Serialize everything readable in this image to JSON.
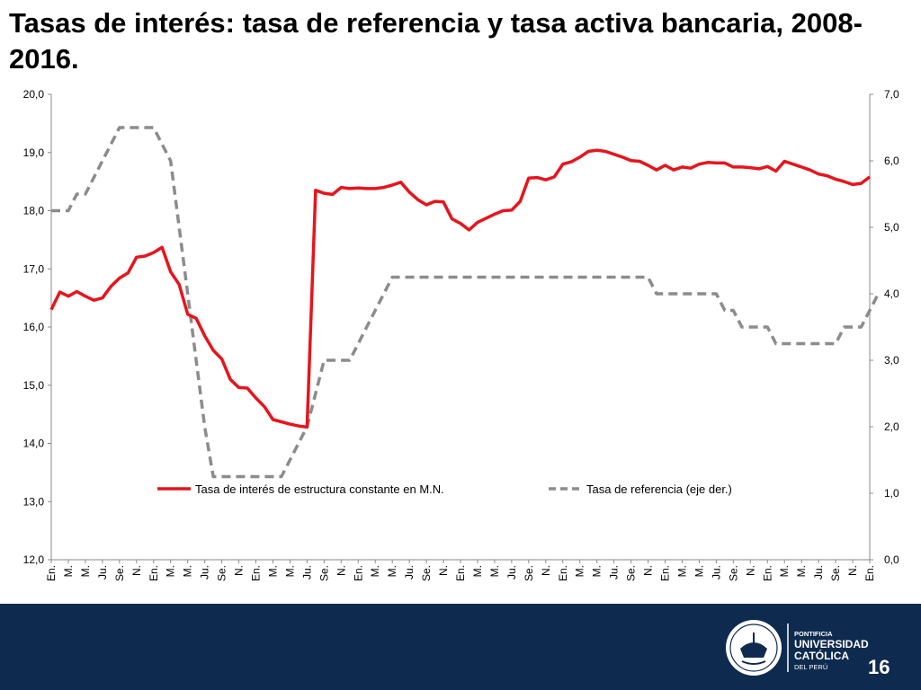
{
  "slide": {
    "title": "Tasas de interés: tasa de referencia y tasa activa bancaria, 2008-2016.",
    "page_number": "16"
  },
  "logo": {
    "icon": "university-seal-icon",
    "line1": "PONTIFICIA",
    "line2": "UNIVERSIDAD",
    "line3": "CATÓLICA",
    "line4": "DEL PERÚ",
    "seal_text": "ET LUX IN TENEBRIS LUCET",
    "seal_year": "MCMXVII"
  },
  "colors": {
    "primary_series": "#e8141c",
    "secondary_series": "#8c8c8c",
    "footer": "#0e2b4f"
  },
  "chart_data": {
    "type": "line",
    "title": "",
    "grid": false,
    "legend_position": "bottom-center",
    "y_left": {
      "range": [
        12.0,
        20.0
      ],
      "ticks": [
        "12,0",
        "13,0",
        "14,0",
        "15,0",
        "16,0",
        "17,0",
        "18,0",
        "19,0",
        "20,0"
      ]
    },
    "y_right": {
      "range": [
        0.0,
        7.0
      ],
      "ticks": [
        "0,0",
        "1,0",
        "2,0",
        "3,0",
        "4,0",
        "5,0",
        "6,0",
        "7,0"
      ]
    },
    "x_labels": [
      "En.",
      "M.",
      "M.",
      "Ju.",
      "Se.",
      "N.",
      "En.",
      "M.",
      "M.",
      "Ju.",
      "Se.",
      "N.",
      "En.",
      "M.",
      "M.",
      "Ju.",
      "Se.",
      "N.",
      "En.",
      "M.",
      "M.",
      "Ju.",
      "Se.",
      "N.",
      "En.",
      "M.",
      "M.",
      "Ju.",
      "Se.",
      "N.",
      "En.",
      "M.",
      "M.",
      "Ju.",
      "Se.",
      "N.",
      "En.",
      "M.",
      "M.",
      "Ju.",
      "Se.",
      "N.",
      "En.",
      "M.",
      "M.",
      "Ju.",
      "Se.",
      "N.",
      "En."
    ],
    "series": [
      {
        "name": "Tasa de interés de estructura constante en M.N.",
        "axis": "left",
        "values": [
          16.3,
          16.6,
          16.53,
          16.61,
          16.53,
          16.46,
          16.5,
          16.7,
          16.84,
          16.93,
          17.2,
          17.22,
          17.28,
          17.37,
          16.95,
          16.73,
          16.22,
          16.15,
          15.85,
          15.6,
          15.45,
          15.1,
          14.96,
          14.95,
          14.78,
          14.63,
          14.41,
          14.37,
          14.33,
          14.3,
          14.28,
          18.35,
          18.3,
          18.28,
          18.4,
          18.38,
          18.39,
          18.38,
          18.38,
          18.4,
          18.44,
          18.49,
          18.32,
          18.19,
          18.1,
          18.16,
          18.15,
          17.86,
          17.78,
          17.67,
          17.8,
          17.87,
          17.94,
          18.0,
          18.01,
          18.16,
          18.56,
          18.57,
          18.53,
          18.58,
          18.8,
          18.84,
          18.92,
          19.02,
          19.04,
          19.02,
          18.97,
          18.92,
          18.86,
          18.85,
          18.78,
          18.7,
          18.78,
          18.7,
          18.75,
          18.73,
          18.8,
          18.83,
          18.82,
          18.82,
          18.75,
          18.75,
          18.74,
          18.72,
          18.76,
          18.68,
          18.85,
          18.8,
          18.75,
          18.7,
          18.63,
          18.6,
          18.54,
          18.5,
          18.45,
          18.47,
          18.58
        ]
      },
      {
        "name": "Tasa de referencia (eje der.)",
        "axis": "right",
        "values": [
          5.25,
          5.25,
          5.25,
          5.5,
          5.5,
          5.75,
          6.0,
          6.25,
          6.5,
          6.5,
          6.5,
          6.5,
          6.5,
          6.25,
          6.0,
          5.0,
          4.0,
          3.0,
          2.0,
          1.25,
          1.25,
          1.25,
          1.25,
          1.25,
          1.25,
          1.25,
          1.25,
          1.25,
          1.5,
          1.75,
          2.0,
          2.5,
          3.0,
          3.0,
          3.0,
          3.0,
          3.25,
          3.5,
          3.75,
          4.0,
          4.25,
          4.25,
          4.25,
          4.25,
          4.25,
          4.25,
          4.25,
          4.25,
          4.25,
          4.25,
          4.25,
          4.25,
          4.25,
          4.25,
          4.25,
          4.25,
          4.25,
          4.25,
          4.25,
          4.25,
          4.25,
          4.25,
          4.25,
          4.25,
          4.25,
          4.25,
          4.25,
          4.25,
          4.25,
          4.25,
          4.25,
          4.0,
          4.0,
          4.0,
          4.0,
          4.0,
          4.0,
          4.0,
          4.0,
          3.75,
          3.75,
          3.5,
          3.5,
          3.5,
          3.5,
          3.25,
          3.25,
          3.25,
          3.25,
          3.25,
          3.25,
          3.25,
          3.25,
          3.5,
          3.5,
          3.5,
          3.75,
          4.0
        ]
      }
    ]
  }
}
